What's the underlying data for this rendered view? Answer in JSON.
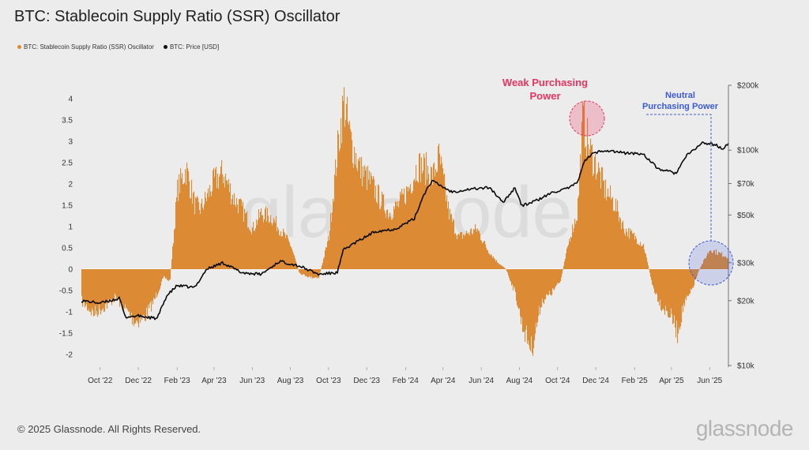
{
  "title": "BTC: Stablecoin Supply Ratio (SSR) Oscillator",
  "legend": [
    {
      "label": "BTC: Stablecoin Supply Ratio (SSR) Oscillator",
      "color": "#e08a32"
    },
    {
      "label": "BTC: Price [USD]",
      "color": "#111111"
    }
  ],
  "footer": "© 2025 Glassnode. All Rights Reserved.",
  "brand": "glassnode",
  "watermark": "glassnode",
  "colors": {
    "ssr": "#dd8a35",
    "price": "#0a0a0a",
    "weak": "#e8345e",
    "neutral": "#3b5bdb"
  },
  "annotations": {
    "weak_line1": "Weak Purchasing",
    "weak_line2": "Power",
    "neutral_line1": "Neutral",
    "neutral_line2": "Purchasing Power"
  },
  "chart_data": {
    "type": "area",
    "x_ticks": [
      "Oct '22",
      "Dec '22",
      "Feb '23",
      "Apr '23",
      "Jun '23",
      "Aug '23",
      "Oct '23",
      "Dec '23",
      "Feb '24",
      "Apr '24",
      "Jun '24",
      "Aug '24",
      "Oct '24",
      "Dec '24",
      "Feb '25",
      "Apr '25",
      "Jun '25"
    ],
    "y_left": {
      "ticks": [
        "4",
        "3.5",
        "3",
        "2.5",
        "2",
        "1.5",
        "1",
        "0.5",
        "0",
        "-0.5",
        "-1",
        "-1.5",
        "-2"
      ],
      "range": [
        -2.25,
        4.3
      ]
    },
    "y_right": {
      "ticks": [
        "$200k",
        "$100k",
        "$70k",
        "$50k",
        "$30k",
        "$20k",
        "$10k"
      ],
      "tick_values": [
        200000,
        100000,
        70000,
        50000,
        30000,
        20000,
        10000
      ],
      "scale": "log",
      "range": [
        10000,
        200000
      ]
    },
    "series": [
      {
        "name": "BTC: Stablecoin Supply Ratio (SSR) Oscillator",
        "axis": "left",
        "x": [
          "2022-09-01",
          "2022-09-20",
          "2022-10-10",
          "2022-10-25",
          "2022-11-10",
          "2022-11-25",
          "2022-12-10",
          "2022-12-25",
          "2023-01-10",
          "2023-01-20",
          "2023-02-01",
          "2023-02-15",
          "2023-03-01",
          "2023-03-10",
          "2023-03-20",
          "2023-04-01",
          "2023-04-15",
          "2023-05-01",
          "2023-05-15",
          "2023-06-01",
          "2023-06-15",
          "2023-07-01",
          "2023-07-15",
          "2023-08-01",
          "2023-08-15",
          "2023-09-01",
          "2023-09-15",
          "2023-10-01",
          "2023-10-15",
          "2023-10-25",
          "2023-11-05",
          "2023-11-20",
          "2023-12-05",
          "2023-12-20",
          "2024-01-05",
          "2024-01-20",
          "2024-02-05",
          "2024-02-20",
          "2024-03-05",
          "2024-03-15",
          "2024-03-25",
          "2024-04-10",
          "2024-04-25",
          "2024-05-10",
          "2024-05-25",
          "2024-06-10",
          "2024-06-25",
          "2024-07-10",
          "2024-07-25",
          "2024-08-05",
          "2024-08-20",
          "2024-09-05",
          "2024-09-20",
          "2024-10-05",
          "2024-10-20",
          "2024-11-01",
          "2024-11-10",
          "2024-11-20",
          "2024-12-01",
          "2024-12-15",
          "2025-01-01",
          "2025-01-15",
          "2025-02-01",
          "2025-02-15",
          "2025-03-01",
          "2025-03-15",
          "2025-04-01",
          "2025-04-10",
          "2025-04-20",
          "2025-05-01",
          "2025-05-15",
          "2025-06-01",
          "2025-06-15",
          "2025-07-01"
        ],
        "values": [
          -0.8,
          -1.1,
          -0.9,
          -0.7,
          -1.0,
          -1.3,
          -1.2,
          -0.8,
          -0.2,
          -0.3,
          2.0,
          2.5,
          1.6,
          1.5,
          1.8,
          2.2,
          2.4,
          1.8,
          1.5,
          1.0,
          1.4,
          1.3,
          1.0,
          0.6,
          -0.1,
          -0.2,
          -0.2,
          0.8,
          3.0,
          4.2,
          3.2,
          2.5,
          2.2,
          1.8,
          1.4,
          1.6,
          2.0,
          2.6,
          2.5,
          2.3,
          2.8,
          1.4,
          0.8,
          0.9,
          1.0,
          0.5,
          0.2,
          0.0,
          -0.6,
          -1.4,
          -2.0,
          -0.8,
          -0.6,
          -0.3,
          0.8,
          1.4,
          3.8,
          3.0,
          2.6,
          2.0,
          1.6,
          1.0,
          0.8,
          0.6,
          -0.4,
          -0.9,
          -1.2,
          -1.6,
          -0.9,
          -0.6,
          0.0,
          0.5,
          0.4,
          0.3
        ]
      },
      {
        "name": "BTC: Price [USD]",
        "axis": "right",
        "x": [
          "2022-09-01",
          "2022-10-01",
          "2022-11-01",
          "2022-11-10",
          "2022-12-01",
          "2022-12-31",
          "2023-01-15",
          "2023-02-01",
          "2023-03-01",
          "2023-03-20",
          "2023-04-15",
          "2023-05-15",
          "2023-06-15",
          "2023-07-15",
          "2023-08-15",
          "2023-09-15",
          "2023-10-15",
          "2023-10-25",
          "2023-11-15",
          "2023-12-15",
          "2024-01-15",
          "2024-02-15",
          "2024-03-01",
          "2024-03-14",
          "2024-04-15",
          "2024-05-15",
          "2024-06-15",
          "2024-07-05",
          "2024-07-25",
          "2024-08-05",
          "2024-09-01",
          "2024-09-25",
          "2024-10-15",
          "2024-11-01",
          "2024-11-12",
          "2024-11-25",
          "2024-12-15",
          "2025-01-15",
          "2025-02-15",
          "2025-03-10",
          "2025-04-08",
          "2025-04-25",
          "2025-05-20",
          "2025-06-10",
          "2025-06-22",
          "2025-07-01"
        ],
        "values": [
          20000,
          19500,
          20500,
          16800,
          17000,
          16500,
          21000,
          23500,
          23000,
          28000,
          30000,
          27000,
          26500,
          30500,
          29000,
          26500,
          27000,
          34500,
          37500,
          42000,
          43000,
          48000,
          62000,
          72000,
          64000,
          66000,
          67000,
          57000,
          67000,
          55000,
          59000,
          64000,
          66000,
          70000,
          88000,
          96000,
          100000,
          97000,
          96000,
          82000,
          78000,
          94000,
          108000,
          106000,
          101000,
          107000
        ]
      }
    ]
  }
}
